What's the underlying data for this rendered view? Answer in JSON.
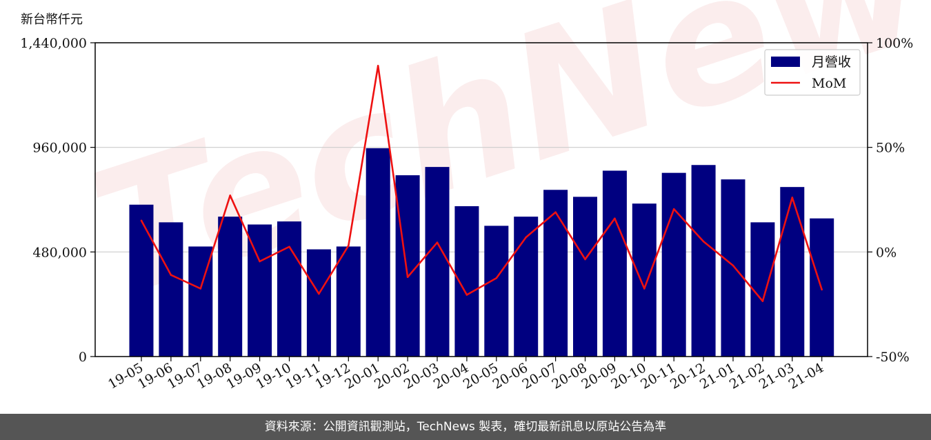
{
  "unit_label": "新台幣仟元",
  "watermark": "TechNews",
  "footer": "資料來源：公開資訊觀測站，TechNews 製表，確切最新訊息以原站公告為準",
  "colors": {
    "bar": "#000080",
    "line": "#ee1111",
    "watermark": "#f7dede"
  },
  "chart_data": {
    "type": "bar",
    "categories": [
      "19-05",
      "19-06",
      "19-07",
      "19-08",
      "19-09",
      "19-10",
      "19-11",
      "19-12",
      "20-01",
      "20-02",
      "20-03",
      "20-04",
      "20-05",
      "20-06",
      "20-07",
      "20-08",
      "20-09",
      "20-10",
      "20-11",
      "20-12",
      "21-01",
      "21-02",
      "21-03",
      "21-04"
    ],
    "series": [
      {
        "name": "月營收",
        "type": "bar",
        "axis": "left",
        "values": [
          697000,
          616000,
          505000,
          642000,
          606000,
          620000,
          492000,
          505000,
          956000,
          832000,
          870000,
          690000,
          600000,
          642000,
          765000,
          733000,
          853000,
          702000,
          843000,
          879000,
          813000,
          616000,
          778000,
          634000
        ]
      },
      {
        "name": "MoM",
        "type": "line",
        "axis": "right",
        "values": [
          15,
          -11,
          -17.5,
          27,
          -4.5,
          2.5,
          -20,
          3,
          89,
          -12,
          4.5,
          -20.5,
          -12.5,
          7,
          19,
          -3.5,
          16,
          -17.5,
          20.5,
          5,
          -6.5,
          -23.5,
          26,
          -18
        ]
      }
    ],
    "y_left": {
      "ylim": [
        0,
        1440000
      ],
      "ticks": [
        "0",
        "480,000",
        "960,000",
        "1,440,000"
      ]
    },
    "y_right": {
      "ylim": [
        -50,
        100
      ],
      "ticks": [
        "-50%",
        "0%",
        "50%",
        "100%"
      ]
    },
    "grid": "horizontal",
    "legend": "top-right"
  }
}
